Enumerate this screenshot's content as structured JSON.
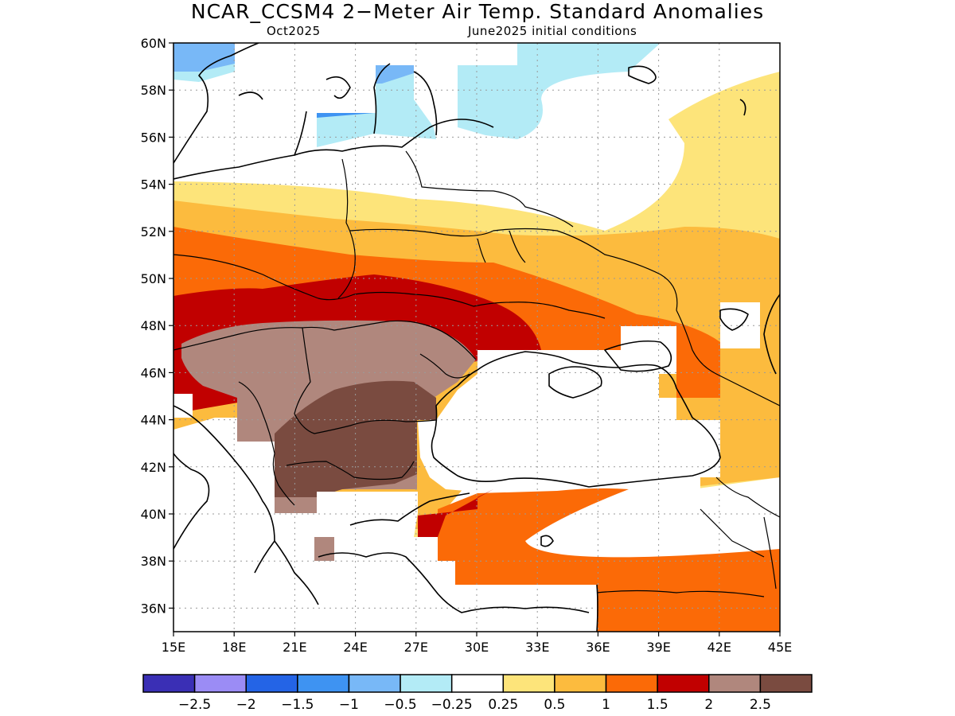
{
  "title": "NCAR_CCSM4 2−Meter Air Temp. Standard Anomalies",
  "subtitle_left": "Oct2025",
  "subtitle_right": "June2025 initial conditions",
  "lat_labels": [
    "60N",
    "58N",
    "56N",
    "54N",
    "52N",
    "50N",
    "48N",
    "46N",
    "44N",
    "42N",
    "40N",
    "38N",
    "36N"
  ],
  "lon_labels": [
    "15E",
    "18E",
    "21E",
    "24E",
    "27E",
    "30E",
    "33E",
    "36E",
    "39E",
    "42E",
    "45E"
  ],
  "colorbar": {
    "colors": [
      "#3a2fb5",
      "#9b8cf5",
      "#2464e6",
      "#3e93f2",
      "#78b8f7",
      "#b3ebf6",
      "#ffffff",
      "#fde47a",
      "#fcbb3e",
      "#fb6a07",
      "#c10000",
      "#b0877d",
      "#7a4b40"
    ],
    "labels": [
      "−2.5",
      "−2",
      "−1.5",
      "−1",
      "−0.5",
      "−0.25",
      "0.25",
      "0.5",
      "1",
      "1.5",
      "2",
      "2.5"
    ]
  },
  "palette": {
    "cool1": "#b3ebf6",
    "cool2": "#78b8f7",
    "cool3": "#3e93f2",
    "warm1": "#fde47a",
    "warm2": "#fcbb3e",
    "warm3": "#fb6a07",
    "warm4": "#c10000",
    "warm5": "#b0877d",
    "warm6": "#7a4b40"
  }
}
